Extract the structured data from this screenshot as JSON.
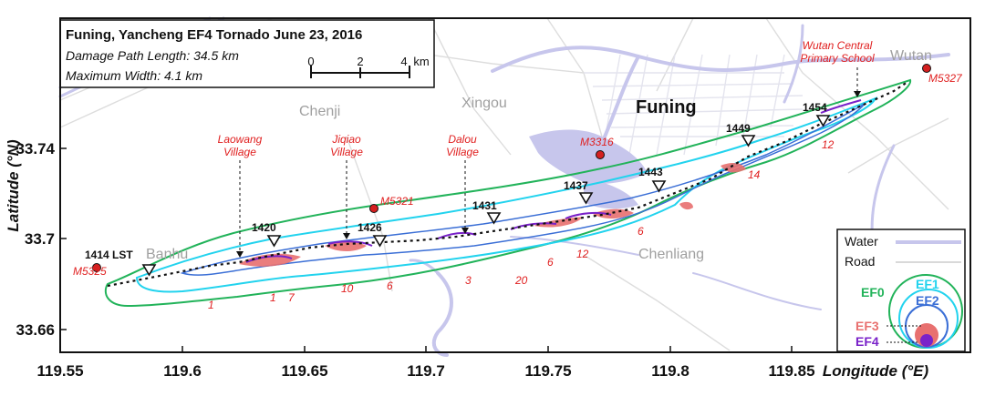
{
  "title_box": {
    "title": "Funing, Yancheng EF4 Tornado June 23, 2016",
    "path_length": "Damage Path Length: 34.5 km",
    "max_width": "Maximum Width: 4.1 km",
    "scale_ticks": [
      "0",
      "2",
      "4"
    ],
    "scale_unit": "km"
  },
  "axes": {
    "ylabel": "Latitude (°N)",
    "xlabel": "Longitude (°E)",
    "x_ticks": [
      "119.55",
      "119.6",
      "119.65",
      "119.7",
      "119.75",
      "119.8",
      "119.85"
    ],
    "y_ticks": [
      "33.74",
      "33.7",
      "33.66"
    ]
  },
  "places": {
    "funing": "Funing",
    "chenji": "Chenji",
    "xingou": "Xingou",
    "banhu": "Banhu",
    "chenliang": "Chenliang",
    "wutan": "Wutan"
  },
  "villages": {
    "laowang": [
      "Laowang",
      "Village"
    ],
    "jiqiao": [
      "Jiqiao",
      "Village"
    ],
    "dalou": [
      "Dalou",
      "Village"
    ],
    "wutan_school": [
      "Wutan Central",
      "Primary School"
    ]
  },
  "stations": [
    "M5325",
    "M5321",
    "M3316",
    "M5327"
  ],
  "time_marks": [
    "1414 LST",
    "1420",
    "1426",
    "1431",
    "1437",
    "1443",
    "1449",
    "1454"
  ],
  "width_numbers": [
    "1",
    "1",
    "7",
    "10",
    "6",
    "3",
    "20",
    "6",
    "12",
    "6",
    "14",
    "12"
  ],
  "legend": {
    "water": "Water",
    "road": "Road",
    "ef_labels": [
      "EF0",
      "EF1",
      "EF2",
      "EF3",
      "EF4"
    ],
    "colors": {
      "water": "#c7c6ec",
      "road": "#d9d9d9"
    }
  },
  "colors": {
    "EF0": "#22b35a",
    "EF1": "#22d3ee",
    "EF2": "#3b6fd6",
    "EF3": "#e8706f",
    "EF4": "#7a22c9",
    "water": "#c7c6ec",
    "road": "#dcdcdc",
    "annotation": "#e02020",
    "station": "#d42020"
  }
}
